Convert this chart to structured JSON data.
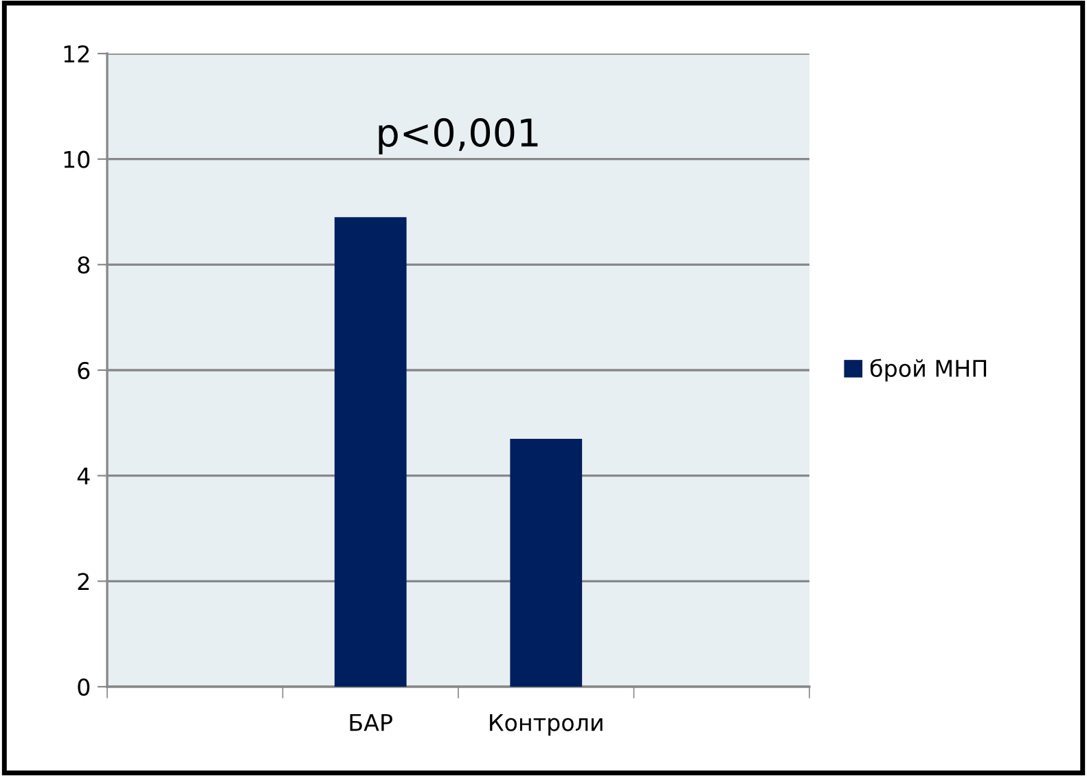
{
  "chart_data": {
    "type": "bar",
    "categories": [
      null,
      "БАР",
      "Контроли",
      null
    ],
    "series": [
      {
        "name": "брой МНП",
        "color": "#001f5f",
        "values": [
          null,
          8.9,
          4.7,
          null
        ]
      }
    ],
    "ylim": [
      0,
      12
    ],
    "yticks": [
      0,
      2,
      4,
      6,
      8,
      10,
      12
    ],
    "grid": "y",
    "legend": "right",
    "annotations": [
      "p<0,001"
    ]
  }
}
